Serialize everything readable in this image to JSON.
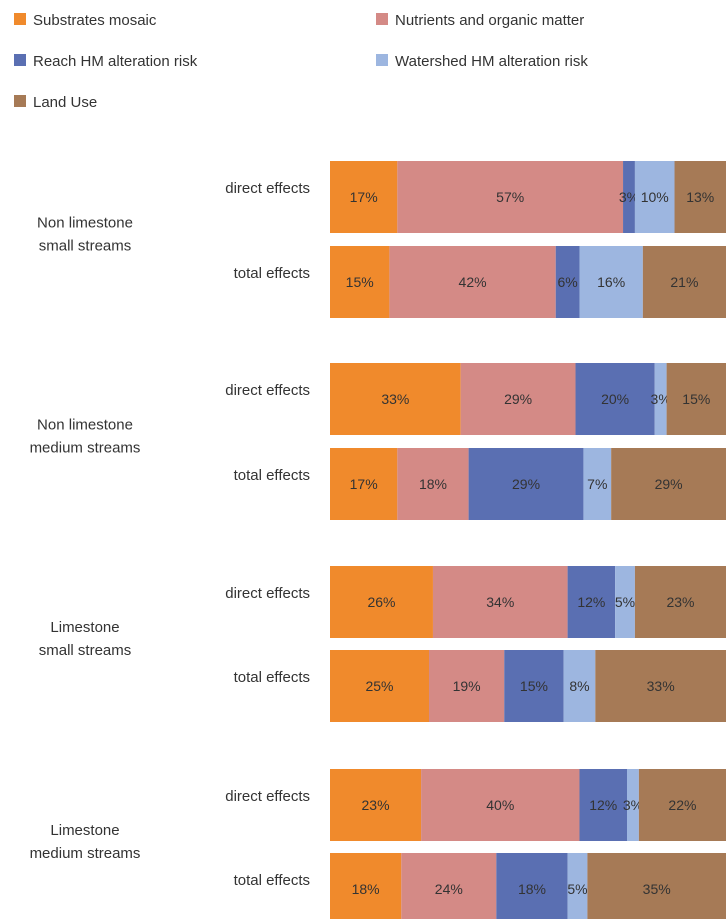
{
  "chart_data": {
    "type": "bar",
    "stacked": true,
    "orientation": "horizontal",
    "normalized_percent": true,
    "legend_position": "top-left",
    "grid": false,
    "title": "",
    "xlabel": "",
    "ylabel": "",
    "series": [
      {
        "name": "Substrates mosaic",
        "color": "#f08a2c"
      },
      {
        "name": "Nutrients and organic matter",
        "color": "#d48a86"
      },
      {
        "name": "Reach HM alteration risk",
        "color": "#5a6fb2"
      },
      {
        "name": "Watershed HM alteration risk",
        "color": "#9db6e0"
      },
      {
        "name": "Land Use",
        "color": "#a67a56"
      }
    ],
    "groups": [
      {
        "label": [
          "Non limestone",
          "small streams"
        ],
        "bars": [
          {
            "label": "direct effects",
            "values": [
              17,
              57,
              3,
              10,
              13
            ]
          },
          {
            "label": "total effects",
            "values": [
              15,
              42,
              6,
              16,
              21
            ]
          }
        ]
      },
      {
        "label": [
          "Non limestone",
          "medium streams"
        ],
        "bars": [
          {
            "label": "direct effects",
            "values": [
              33,
              29,
              20,
              3,
              15
            ]
          },
          {
            "label": "total effects",
            "values": [
              17,
              18,
              29,
              7,
              29
            ]
          }
        ]
      },
      {
        "label": [
          "Limestone",
          "small streams"
        ],
        "bars": [
          {
            "label": "direct effects",
            "values": [
              26,
              34,
              12,
              5,
              23
            ]
          },
          {
            "label": "total effects",
            "values": [
              25,
              19,
              15,
              8,
              33
            ]
          }
        ]
      },
      {
        "label": [
          "Limestone",
          "medium streams"
        ],
        "bars": [
          {
            "label": "direct effects",
            "values": [
              23,
              40,
              12,
              3,
              22
            ]
          },
          {
            "label": "total effects",
            "values": [
              18,
              24,
              18,
              5,
              35
            ]
          }
        ]
      }
    ]
  }
}
